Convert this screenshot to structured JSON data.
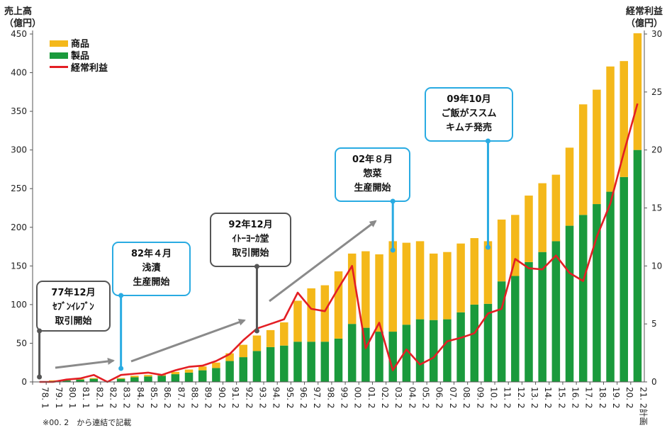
{
  "chart_data": {
    "type": "bar",
    "stacked": true,
    "title": "",
    "ylabel_left": "売上高\n（億円）",
    "ylabel_right": "経常利益\n（億円）",
    "ylim_left": [
      0,
      450
    ],
    "ylim_right": [
      0,
      30
    ],
    "yticks_left": [
      "0",
      "50",
      "100",
      "150",
      "200",
      "250",
      "300",
      "350",
      "400",
      "450"
    ],
    "yticks_right": [
      "0",
      "5",
      "10",
      "15",
      "20",
      "25",
      "30"
    ],
    "categories": [
      "78. 1",
      "79. 1",
      "80. 1",
      "81. 1",
      "82. 1",
      "82. 2",
      "83. 2",
      "84. 2",
      "85. 2",
      "86. 2",
      "87. 2",
      "88. 2",
      "89. 2",
      "90. 2",
      "91. 2",
      "92. 2",
      "93. 2",
      "94. 2",
      "95. 2",
      "96. 2",
      "97. 2",
      "98. 2",
      "99. 2",
      "00. 2",
      "01. 2",
      "02. 2",
      "03. 2",
      "04. 2",
      "05. 2",
      "06. 2",
      "07. 2",
      "08. 2",
      "09. 2",
      "10. 2",
      "11. 2",
      "12. 2",
      "13. 2",
      "14. 2",
      "15. 2",
      "16. 2",
      "17. 2",
      "18. 2",
      "19. 2",
      "20. 2",
      "21. 2計画"
    ],
    "series": [
      {
        "name": "製品",
        "color": "#1a9a3c",
        "values": [
          0,
          1,
          2,
          3,
          4,
          0,
          4,
          6,
          7,
          8,
          10,
          12,
          15,
          18,
          27,
          32,
          40,
          45,
          47,
          52,
          52,
          52,
          56,
          75,
          70,
          65,
          65,
          74,
          81,
          80,
          81,
          90,
          100,
          101,
          130,
          137,
          155,
          168,
          182,
          202,
          216,
          230,
          246,
          265,
          300
        ]
      },
      {
        "name": "商品",
        "color": "#f4b81a",
        "values": [
          0,
          1,
          1,
          1,
          1,
          0,
          1,
          2,
          2,
          2,
          3,
          4,
          5,
          7,
          10,
          16,
          20,
          22,
          30,
          53,
          69,
          73,
          87,
          91,
          99,
          100,
          117,
          106,
          101,
          86,
          87,
          89,
          86,
          81,
          80,
          79,
          86,
          89,
          86,
          101,
          143,
          148,
          162,
          150,
          151
        ]
      },
      {
        "name": "経常利益",
        "type": "line",
        "color": "#e31e24",
        "axis": "right",
        "values": [
          0,
          0,
          0.2,
          0.3,
          0.6,
          0,
          0.6,
          0.7,
          0.8,
          0.6,
          1,
          1.3,
          1.4,
          1.8,
          2.4,
          3.6,
          4.6,
          5,
          5.4,
          7.7,
          6.3,
          6.1,
          8.1,
          10,
          2.9,
          5.1,
          1,
          2.8,
          1.5,
          2.1,
          3.5,
          3.8,
          4.2,
          5.9,
          6.3,
          10.6,
          9.8,
          9.7,
          10.9,
          9.4,
          8.7,
          12.5,
          15.4,
          19.8,
          24
        ]
      }
    ],
    "legend": [
      "商品",
      "製品",
      "経常利益"
    ],
    "legend_position": "top-left",
    "grid": false,
    "note": "※00. 2　から連結で記載",
    "annotations": [
      {
        "lines": [
          "77年12月",
          "ｾﾌﾞﾝｲﾚﾌﾞﾝ",
          "取引開始"
        ],
        "category": "78. 1",
        "border": "#555555"
      },
      {
        "lines": [
          "82年４月",
          "浅漬",
          "生産開始"
        ],
        "category": "83. 2",
        "border": "#29abe2"
      },
      {
        "lines": [
          "92年12月",
          "ｲﾄｰﾖｰｶ堂",
          "取引開始"
        ],
        "category": "93. 2",
        "border": "#555555"
      },
      {
        "lines": [
          "02年８月",
          "惣菜",
          "生産開始"
        ],
        "category": "03. 2",
        "border": "#29abe2"
      },
      {
        "lines": [
          "09年10月",
          "ご飯がススム",
          "キムチ発売"
        ],
        "category": "10. 2",
        "border": "#29abe2"
      }
    ]
  }
}
